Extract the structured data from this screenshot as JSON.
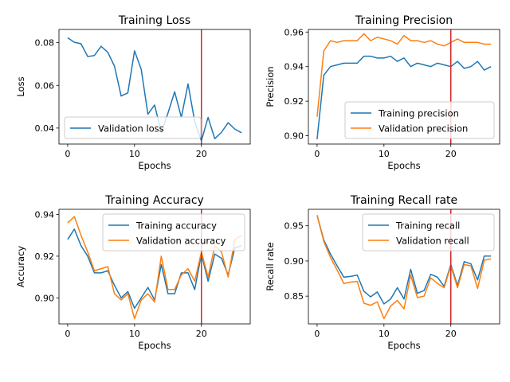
{
  "chart_data": [
    {
      "type": "line",
      "title": "Training Loss",
      "xlabel": "Epochs",
      "ylabel": "Loss",
      "xlim": [
        -1.3,
        27.3
      ],
      "ylim": [
        0.0325,
        0.0862
      ],
      "xticks": [
        0,
        10,
        20
      ],
      "yticks": [
        0.04,
        0.06,
        0.08
      ],
      "ytick_labels": [
        "0.04",
        "0.06",
        "0.08"
      ],
      "vline": {
        "x": 20,
        "color": "#d62728"
      },
      "legend": "lower-left",
      "x": [
        0,
        1,
        2,
        3,
        4,
        5,
        6,
        7,
        8,
        9,
        10,
        11,
        12,
        13,
        14,
        15,
        16,
        17,
        18,
        19,
        20,
        21,
        22,
        23,
        24,
        25,
        26
      ],
      "series": [
        {
          "name": "Validation loss",
          "color": "#1f77b4",
          "values": [
            0.0823,
            0.0802,
            0.0795,
            0.0735,
            0.074,
            0.0783,
            0.0755,
            0.069,
            0.055,
            0.0565,
            0.0762,
            0.0675,
            0.0465,
            0.0508,
            0.038,
            0.047,
            0.057,
            0.045,
            0.0607,
            0.043,
            0.034,
            0.045,
            0.035,
            0.038,
            0.0425,
            0.0395,
            0.0378
          ]
        }
      ]
    },
    {
      "type": "line",
      "title": "Training Precision",
      "xlabel": "Epochs",
      "ylabel": "Precision",
      "xlim": [
        -1.3,
        27.3
      ],
      "ylim": [
        0.8952,
        0.9615
      ],
      "xticks": [
        0,
        10,
        20
      ],
      "yticks": [
        0.9,
        0.92,
        0.94,
        0.96
      ],
      "ytick_labels": [
        "0.90",
        "0.92",
        "0.94",
        "0.96"
      ],
      "vline": {
        "x": 20,
        "color": "#d62728"
      },
      "legend": "lower-right",
      "x": [
        0,
        1,
        2,
        3,
        4,
        5,
        6,
        7,
        8,
        9,
        10,
        11,
        12,
        13,
        14,
        15,
        16,
        17,
        18,
        19,
        20,
        21,
        22,
        23,
        24,
        25,
        26
      ],
      "series": [
        {
          "name": "Training precision",
          "color": "#1f77b4",
          "values": [
            0.898,
            0.935,
            0.94,
            0.941,
            0.942,
            0.942,
            0.942,
            0.946,
            0.946,
            0.945,
            0.945,
            0.946,
            0.943,
            0.945,
            0.94,
            0.942,
            0.941,
            0.94,
            0.942,
            0.941,
            0.94,
            0.943,
            0.939,
            0.94,
            0.943,
            0.938,
            0.94
          ]
        },
        {
          "name": "Validation precision",
          "color": "#ff7f0e",
          "values": [
            0.911,
            0.949,
            0.955,
            0.954,
            0.955,
            0.955,
            0.955,
            0.959,
            0.955,
            0.957,
            0.956,
            0.955,
            0.953,
            0.958,
            0.955,
            0.955,
            0.954,
            0.955,
            0.953,
            0.952,
            0.954,
            0.956,
            0.954,
            0.954,
            0.954,
            0.953,
            0.953
          ]
        }
      ]
    },
    {
      "type": "line",
      "title": "Training Accuracy",
      "xlabel": "Epochs",
      "ylabel": "Accuracy",
      "xlim": [
        -1.3,
        27.3
      ],
      "ylim": [
        0.8875,
        0.9425
      ],
      "xticks": [
        0,
        10,
        20
      ],
      "yticks": [
        0.9,
        0.92,
        0.94
      ],
      "ytick_labels": [
        "0.90",
        "0.92",
        "0.94"
      ],
      "vline": {
        "x": 20,
        "color": "#d62728"
      },
      "legend": "upper-right",
      "x": [
        0,
        1,
        2,
        3,
        4,
        5,
        6,
        7,
        8,
        9,
        10,
        11,
        12,
        13,
        14,
        15,
        16,
        17,
        18,
        19,
        20,
        21,
        22,
        23,
        24,
        25,
        26
      ],
      "series": [
        {
          "name": "Training accuracy",
          "color": "#1f77b4",
          "values": [
            0.928,
            0.933,
            0.925,
            0.92,
            0.912,
            0.912,
            0.913,
            0.906,
            0.9,
            0.903,
            0.895,
            0.9,
            0.905,
            0.899,
            0.916,
            0.902,
            0.902,
            0.912,
            0.912,
            0.904,
            0.921,
            0.908,
            0.921,
            0.919,
            0.911,
            0.924,
            0.925
          ]
        },
        {
          "name": "Validation accuracy",
          "color": "#ff7f0e",
          "values": [
            0.936,
            0.939,
            0.93,
            0.922,
            0.913,
            0.914,
            0.915,
            0.902,
            0.899,
            0.902,
            0.89,
            0.899,
            0.902,
            0.898,
            0.92,
            0.904,
            0.904,
            0.911,
            0.914,
            0.908,
            0.922,
            0.91,
            0.925,
            0.922,
            0.91,
            0.928,
            0.93
          ]
        }
      ]
    },
    {
      "type": "line",
      "title": "Training Recall rate",
      "xlabel": "Epochs",
      "ylabel": "Recall rate",
      "xlim": [
        -1.3,
        27.3
      ],
      "ylim": [
        0.8106,
        0.9734
      ],
      "xticks": [
        0,
        10,
        20
      ],
      "yticks": [
        0.85,
        0.9,
        0.95
      ],
      "ytick_labels": [
        "0.85",
        "0.90",
        "0.95"
      ],
      "vline": {
        "x": 20,
        "color": "#d62728"
      },
      "legend": "upper-right",
      "x": [
        0,
        1,
        2,
        3,
        4,
        5,
        6,
        7,
        8,
        9,
        10,
        11,
        12,
        13,
        14,
        15,
        16,
        17,
        18,
        19,
        20,
        21,
        22,
        23,
        24,
        25,
        26
      ],
      "series": [
        {
          "name": "Training recall",
          "color": "#1f77b4",
          "values": [
            0.965,
            0.93,
            0.91,
            0.893,
            0.877,
            0.878,
            0.88,
            0.857,
            0.849,
            0.856,
            0.839,
            0.846,
            0.862,
            0.846,
            0.888,
            0.854,
            0.858,
            0.881,
            0.877,
            0.864,
            0.895,
            0.865,
            0.899,
            0.896,
            0.873,
            0.907,
            0.907
          ]
        },
        {
          "name": "Validation recall",
          "color": "#ff7f0e",
          "values": [
            0.965,
            0.928,
            0.905,
            0.887,
            0.868,
            0.87,
            0.871,
            0.84,
            0.837,
            0.842,
            0.818,
            0.836,
            0.844,
            0.832,
            0.88,
            0.848,
            0.85,
            0.876,
            0.868,
            0.862,
            0.893,
            0.862,
            0.895,
            0.893,
            0.861,
            0.901,
            0.903
          ]
        }
      ]
    }
  ]
}
